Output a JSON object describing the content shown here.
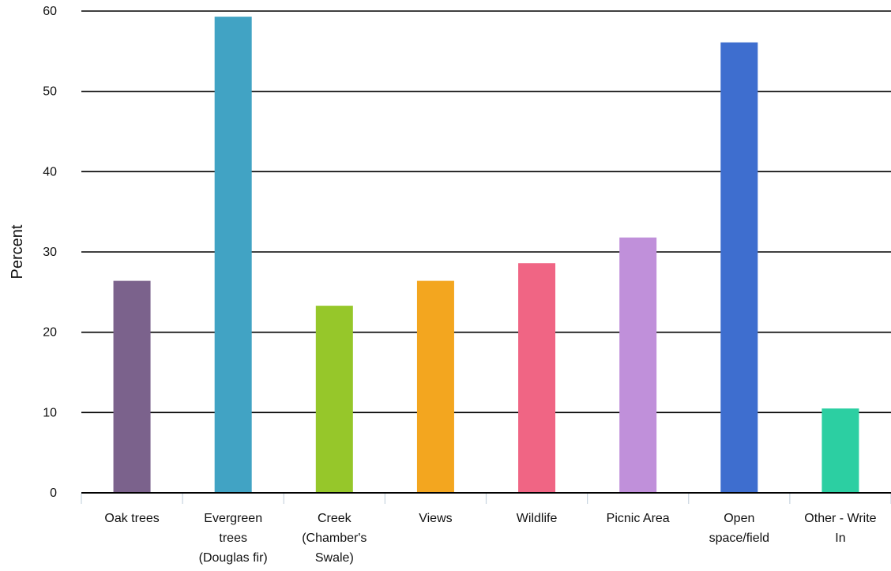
{
  "chart_data": {
    "type": "bar",
    "ylabel": "Percent",
    "ylim": [
      0,
      60
    ],
    "yticks": [
      0,
      10,
      20,
      30,
      40,
      50,
      60
    ],
    "grid": true,
    "categories": [
      [
        "Oak trees"
      ],
      [
        "Evergreen",
        "trees",
        "(Douglas fir)"
      ],
      [
        "Creek",
        "(Chamber's",
        "Swale)"
      ],
      [
        "Views"
      ],
      [
        "Wildlife"
      ],
      [
        "Picnic Area"
      ],
      [
        "Open",
        "space/field"
      ],
      [
        "Other - Write",
        "In"
      ]
    ],
    "values": [
      26.4,
      59.3,
      23.3,
      26.4,
      28.6,
      31.8,
      56.1,
      10.5
    ],
    "colors": [
      "#7b628c",
      "#41a3c4",
      "#96c72a",
      "#f3a61f",
      "#f06584",
      "#c090da",
      "#3e6ecf",
      "#2ccfa2"
    ]
  }
}
